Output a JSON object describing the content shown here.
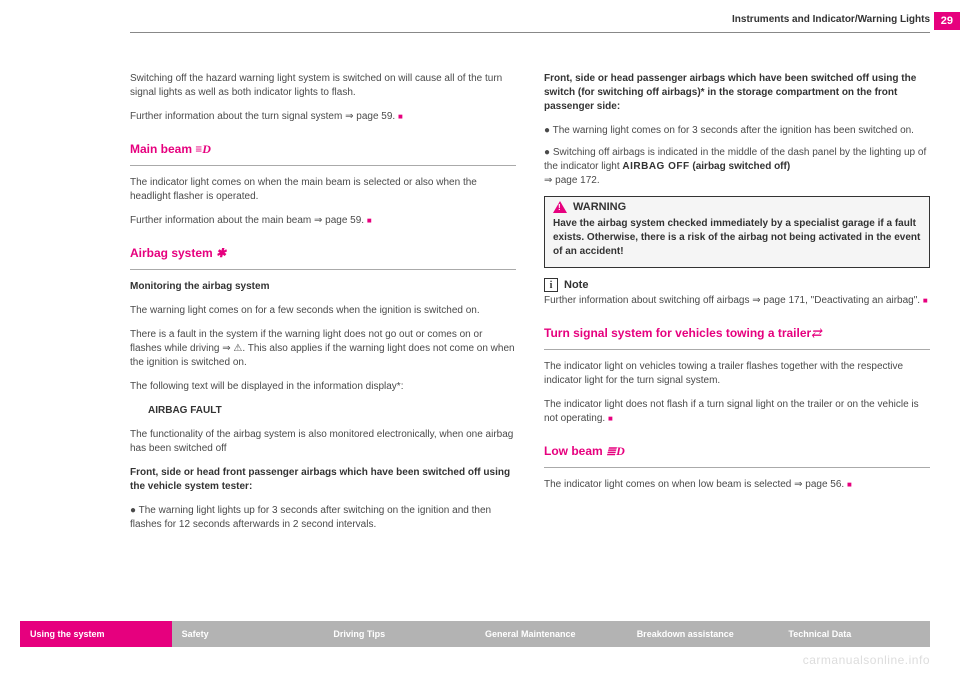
{
  "page": {
    "number": "29",
    "header_title": "Instruments and Indicator/Warning Lights"
  },
  "colors": {
    "brand_pink": "#e6007e",
    "nav_gray": "#b3b3b3",
    "text": "#4a4a4a",
    "text_bold": "#333333",
    "rule": "#888888",
    "warning_bg": "#f5f5f5",
    "watermark": "#dddddd"
  },
  "typography": {
    "body_size_pt": 10,
    "section_title_size_pt": 12,
    "nav_size_pt": 9,
    "font_family": "Arial, Helvetica, sans-serif"
  },
  "left": {
    "intro_p1": "Switching off the hazard warning light system is switched on will cause all of the turn signal lights as well as both indicator lights to flash.",
    "intro_p2": "Further information about the turn signal system ⇒ page 59. ",
    "main_beam": {
      "title": "Main beam ",
      "icon": "≡D",
      "p1": "The indicator light  comes on when the main beam is selected or also when the headlight flasher is operated.",
      "p2": "Further information about the main beam ⇒ page 59. "
    },
    "airbag": {
      "title": "Airbag system ",
      "icon": "✱",
      "sub1": "Monitoring the airbag system",
      "p1": "The warning light  comes on for a few seconds when the ignition is switched on.",
      "p2": "There is a fault in the system if the warning light does not go out or comes on or flashes while driving ⇒ ⚠. This also applies if the warning light does not come on when the ignition is switched on.",
      "p3": "The following text will be displayed in the information display*:",
      "fault": "AIRBAG FAULT",
      "p4": "The functionality of the airbag system is also monitored electronically, when one airbag has been switched off",
      "sub2": "Front, side or head front passenger airbags which have been switched off using the vehicle system tester:",
      "b1": "The warning light  lights up for 3 seconds after switching on the ignition and then flashes for 12 seconds afterwards in 2 second intervals."
    }
  },
  "right": {
    "sub1": "Front, side or head passenger airbags which have been switched off using the switch (for switching off airbags)* in the storage compartment on the front passenger side:",
    "b1": "The warning light  comes on for 3 seconds after the ignition has been switched on.",
    "b2_a": "Switching off airbags is indicated in the middle of the dash panel by the lighting up of the indicator light ",
    "b2_airbagoff": "AIRBAG OFF",
    "b2_b": " (airbag switched off)",
    "b2_c": "⇒ page 172.",
    "warning_label": "WARNING",
    "warning_body": "Have the airbag system checked immediately by a specialist garage if a fault exists. Otherwise, there is a risk of the airbag not being activated in the event of an accident!",
    "note_label": "Note",
    "note_body": "Further information about switching off airbags ⇒ page 171, \"Deactivating an airbag\". ",
    "trailer": {
      "title": "Turn signal system for vehicles towing a trailer",
      "icon": "⇄",
      "p1": "The indicator light  on vehicles towing a trailer flashes together with the respective indicator light for the turn signal system.",
      "p2": "The indicator light  does not flash if a turn signal light on the trailer or on the vehicle is not operating. "
    },
    "lowbeam": {
      "title": "Low beam ",
      "icon": "≣D",
      "p1": "The indicator light  comes on when low beam is selected ⇒ page 56. "
    }
  },
  "nav": {
    "items": [
      "Using the system",
      "Safety",
      "Driving Tips",
      "General Maintenance",
      "Breakdown assistance",
      "Technical Data"
    ]
  },
  "watermark": "carmanualsonline.info"
}
